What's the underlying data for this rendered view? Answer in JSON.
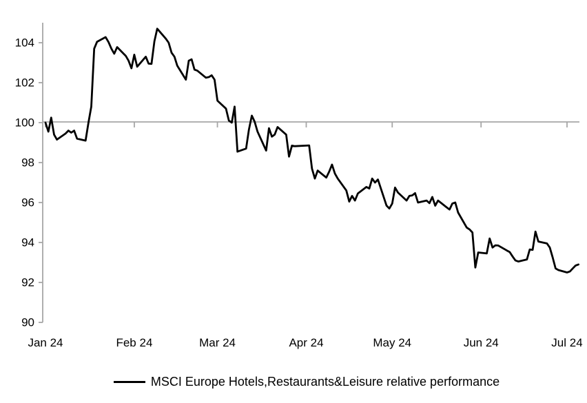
{
  "chart_data": {
    "type": "line",
    "title": "",
    "legend": {
      "position": "bottom",
      "label": "MSCI Europe Hotels,Restaurants&Leisure relative performance"
    },
    "grid": "baseline-only",
    "axis_color": "#a6a6a6",
    "line_color": "#000000",
    "baseline_value": 100,
    "y_axis": {
      "min": 90,
      "max": 105,
      "ticks": [
        90,
        92,
        94,
        96,
        98,
        100,
        102,
        104
      ]
    },
    "x_axis": {
      "type": "date",
      "start": "2024-01-01",
      "end": "2024-07-05",
      "ticks": [
        {
          "date": "2024-01-01",
          "label": "Jan 24"
        },
        {
          "date": "2024-02-01",
          "label": "Feb 24"
        },
        {
          "date": "2024-03-01",
          "label": "Mar 24"
        },
        {
          "date": "2024-04-01",
          "label": "Apr 24"
        },
        {
          "date": "2024-05-01",
          "label": "May 24"
        },
        {
          "date": "2024-06-01",
          "label": "Jun 24"
        },
        {
          "date": "2024-07-01",
          "label": "Jul 24"
        }
      ]
    },
    "series": [
      {
        "name": "MSCI Europe Hotels,Restaurants&Leisure relative performance",
        "color": "#000000",
        "points": [
          [
            "2024-01-01",
            100.0
          ],
          [
            "2024-01-02",
            99.55
          ],
          [
            "2024-01-03",
            100.25
          ],
          [
            "2024-01-04",
            99.4
          ],
          [
            "2024-01-05",
            99.15
          ],
          [
            "2024-01-08",
            99.45
          ],
          [
            "2024-01-09",
            99.6
          ],
          [
            "2024-01-10",
            99.5
          ],
          [
            "2024-01-11",
            99.6
          ],
          [
            "2024-01-12",
            99.2
          ],
          [
            "2024-01-15",
            99.1
          ],
          [
            "2024-01-16",
            100.0
          ],
          [
            "2024-01-17",
            100.8
          ],
          [
            "2024-01-18",
            103.7
          ],
          [
            "2024-01-19",
            104.05
          ],
          [
            "2024-01-22",
            104.28
          ],
          [
            "2024-01-23",
            104.03
          ],
          [
            "2024-01-24",
            103.7
          ],
          [
            "2024-01-25",
            103.45
          ],
          [
            "2024-01-26",
            103.78
          ],
          [
            "2024-01-29",
            103.34
          ],
          [
            "2024-01-30",
            103.1
          ],
          [
            "2024-01-31",
            102.72
          ],
          [
            "2024-02-01",
            103.4
          ],
          [
            "2024-02-02",
            102.8
          ],
          [
            "2024-02-05",
            103.3
          ],
          [
            "2024-02-06",
            102.95
          ],
          [
            "2024-02-07",
            102.94
          ],
          [
            "2024-02-08",
            104.07
          ],
          [
            "2024-02-09",
            104.7
          ],
          [
            "2024-02-12",
            104.2
          ],
          [
            "2024-02-13",
            104.0
          ],
          [
            "2024-02-14",
            103.5
          ],
          [
            "2024-02-15",
            103.3
          ],
          [
            "2024-02-16",
            102.85
          ],
          [
            "2024-02-19",
            102.15
          ],
          [
            "2024-02-20",
            103.1
          ],
          [
            "2024-02-21",
            103.17
          ],
          [
            "2024-02-22",
            102.65
          ],
          [
            "2024-02-23",
            102.6
          ],
          [
            "2024-02-26",
            102.25
          ],
          [
            "2024-02-27",
            102.28
          ],
          [
            "2024-02-28",
            102.37
          ],
          [
            "2024-02-29",
            102.15
          ],
          [
            "2024-03-01",
            101.1
          ],
          [
            "2024-03-04",
            100.7
          ],
          [
            "2024-03-05",
            100.1
          ],
          [
            "2024-03-06",
            100.0
          ],
          [
            "2024-03-07",
            100.8
          ],
          [
            "2024-03-08",
            98.55
          ],
          [
            "2024-03-11",
            98.7
          ],
          [
            "2024-03-12",
            99.65
          ],
          [
            "2024-03-13",
            100.35
          ],
          [
            "2024-03-14",
            100.05
          ],
          [
            "2024-03-15",
            99.55
          ],
          [
            "2024-03-18",
            98.6
          ],
          [
            "2024-03-19",
            99.72
          ],
          [
            "2024-03-20",
            99.3
          ],
          [
            "2024-03-21",
            99.4
          ],
          [
            "2024-03-22",
            99.78
          ],
          [
            "2024-03-25",
            99.4
          ],
          [
            "2024-03-26",
            98.3
          ],
          [
            "2024-03-27",
            98.85
          ],
          [
            "2024-03-28",
            98.82
          ],
          [
            "2024-04-02",
            98.86
          ],
          [
            "2024-04-03",
            97.7
          ],
          [
            "2024-04-04",
            97.2
          ],
          [
            "2024-04-05",
            97.6
          ],
          [
            "2024-04-08",
            97.25
          ],
          [
            "2024-04-09",
            97.55
          ],
          [
            "2024-04-10",
            97.9
          ],
          [
            "2024-04-11",
            97.45
          ],
          [
            "2024-04-12",
            97.2
          ],
          [
            "2024-04-15",
            96.6
          ],
          [
            "2024-04-16",
            96.05
          ],
          [
            "2024-04-17",
            96.33
          ],
          [
            "2024-04-18",
            96.1
          ],
          [
            "2024-04-19",
            96.45
          ],
          [
            "2024-04-22",
            96.78
          ],
          [
            "2024-04-23",
            96.7
          ],
          [
            "2024-04-24",
            97.2
          ],
          [
            "2024-04-25",
            97.0
          ],
          [
            "2024-04-26",
            97.15
          ],
          [
            "2024-04-29",
            95.85
          ],
          [
            "2024-04-30",
            95.7
          ],
          [
            "2024-05-01",
            95.95
          ],
          [
            "2024-05-02",
            96.75
          ],
          [
            "2024-05-03",
            96.5
          ],
          [
            "2024-05-06",
            96.1
          ],
          [
            "2024-05-07",
            96.33
          ],
          [
            "2024-05-08",
            96.36
          ],
          [
            "2024-05-09",
            96.47
          ],
          [
            "2024-05-10",
            96.0
          ],
          [
            "2024-05-13",
            96.1
          ],
          [
            "2024-05-14",
            95.97
          ],
          [
            "2024-05-15",
            96.28
          ],
          [
            "2024-05-16",
            95.84
          ],
          [
            "2024-05-17",
            96.1
          ],
          [
            "2024-05-20",
            95.76
          ],
          [
            "2024-05-21",
            95.65
          ],
          [
            "2024-05-22",
            95.95
          ],
          [
            "2024-05-23",
            96.0
          ],
          [
            "2024-05-24",
            95.5
          ],
          [
            "2024-05-27",
            94.75
          ],
          [
            "2024-05-28",
            94.65
          ],
          [
            "2024-05-29",
            94.5
          ],
          [
            "2024-05-30",
            92.75
          ],
          [
            "2024-05-31",
            93.5
          ],
          [
            "2024-06-03",
            93.45
          ],
          [
            "2024-06-04",
            94.2
          ],
          [
            "2024-06-05",
            93.75
          ],
          [
            "2024-06-06",
            93.86
          ],
          [
            "2024-06-07",
            93.85
          ],
          [
            "2024-06-10",
            93.6
          ],
          [
            "2024-06-11",
            93.52
          ],
          [
            "2024-06-12",
            93.3
          ],
          [
            "2024-06-13",
            93.1
          ],
          [
            "2024-06-14",
            93.05
          ],
          [
            "2024-06-17",
            93.15
          ],
          [
            "2024-06-18",
            93.65
          ],
          [
            "2024-06-19",
            93.63
          ],
          [
            "2024-06-20",
            94.55
          ],
          [
            "2024-06-21",
            94.05
          ],
          [
            "2024-06-24",
            93.95
          ],
          [
            "2024-06-25",
            93.75
          ],
          [
            "2024-06-26",
            93.25
          ],
          [
            "2024-06-27",
            92.7
          ],
          [
            "2024-06-28",
            92.62
          ],
          [
            "2024-07-01",
            92.5
          ],
          [
            "2024-07-02",
            92.55
          ],
          [
            "2024-07-03",
            92.7
          ],
          [
            "2024-07-04",
            92.85
          ],
          [
            "2024-07-05",
            92.9
          ]
        ]
      }
    ]
  }
}
